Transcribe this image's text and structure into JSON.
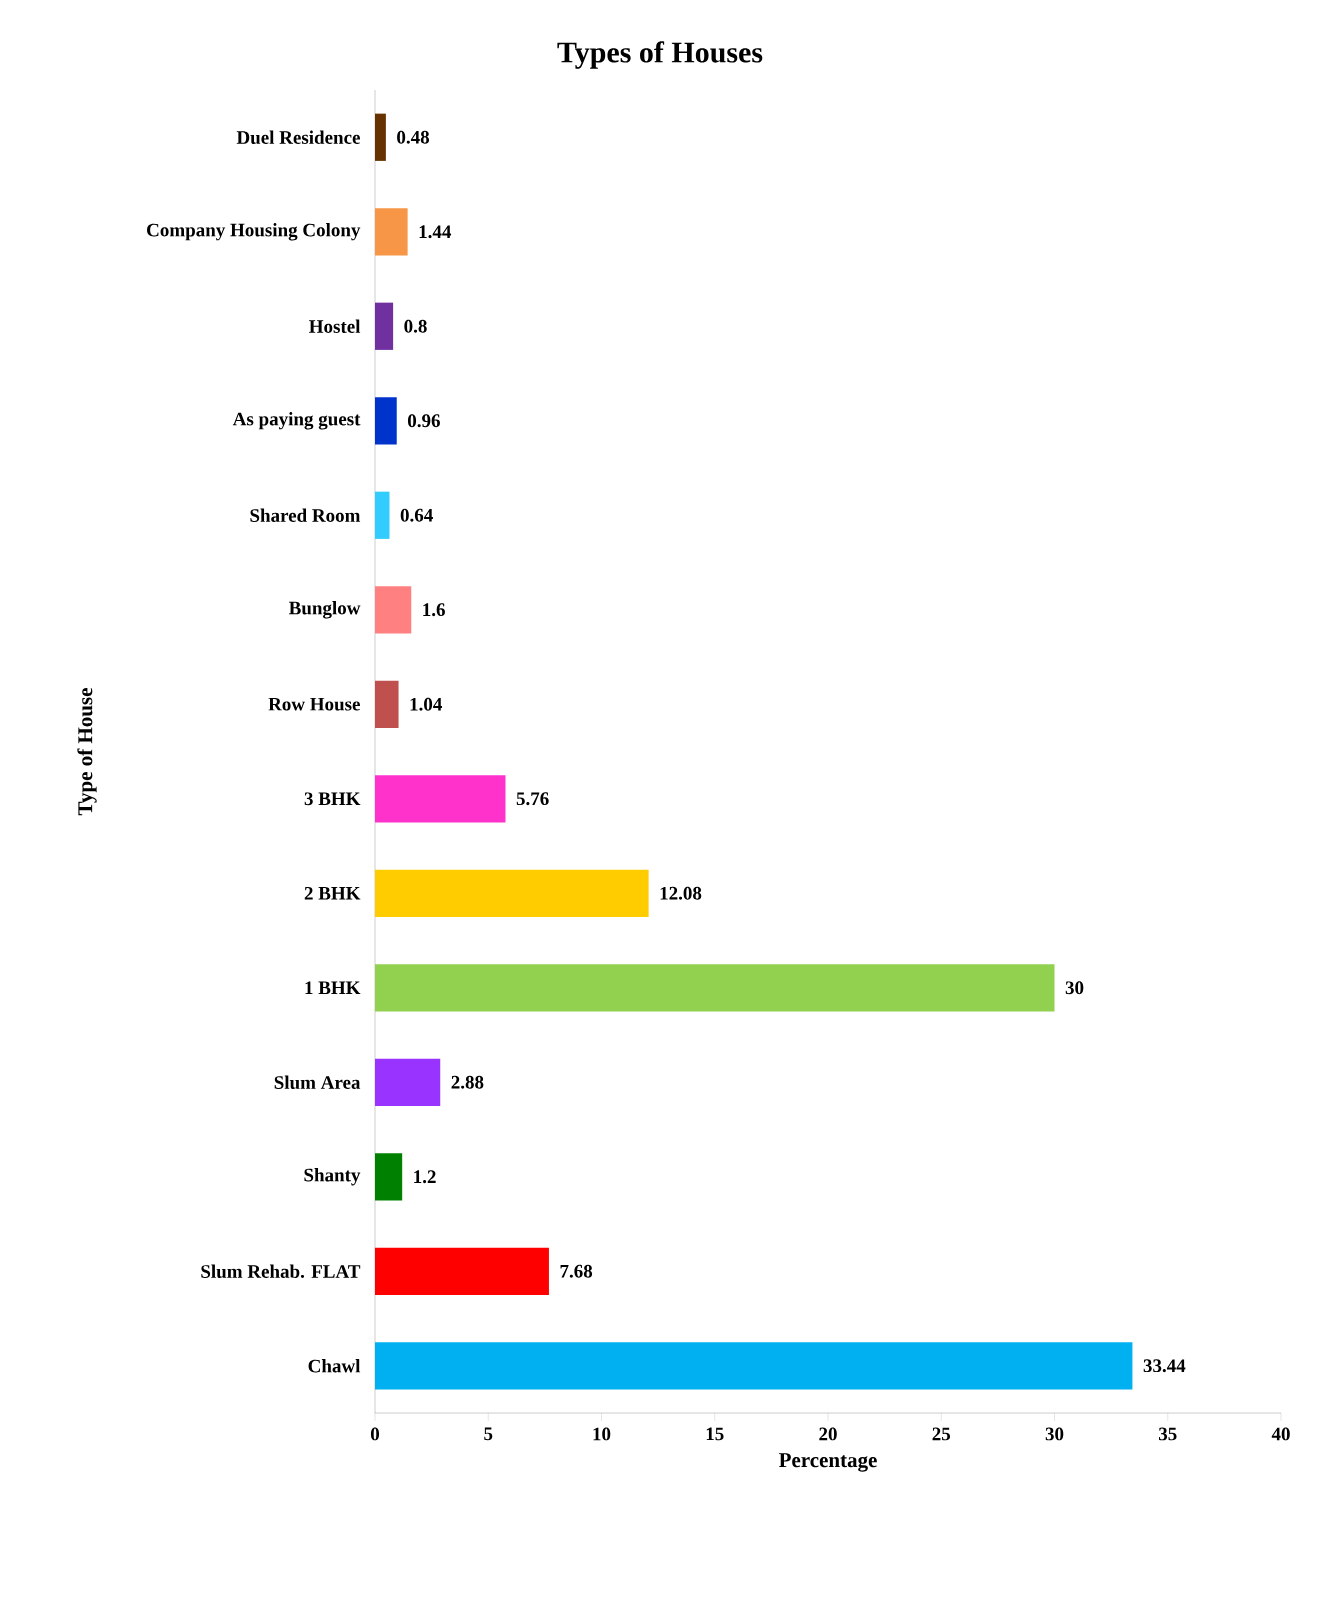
{
  "chart_data": {
    "type": "bar",
    "orientation": "horizontal",
    "title": "Types of Houses",
    "xlabel": "Percentage",
    "ylabel": "Type of House",
    "categories": [
      "Duel Residence",
      "Company Housing Colony",
      "Hostel",
      "As paying guest",
      "Shared Room",
      "Bunglow",
      "Row House",
      "3 BHK",
      "2 BHK",
      "1 BHK",
      "Slum Area",
      "Shanty",
      "Slum Rehab. FLAT",
      "Chawl"
    ],
    "values": [
      0.48,
      1.44,
      0.8,
      0.96,
      0.64,
      1.6,
      1.04,
      5.76,
      12.08,
      30,
      2.88,
      1.2,
      7.68,
      33.44
    ],
    "colors": [
      "#663300",
      "#f79646",
      "#7030a0",
      "#0033cc",
      "#33ccff",
      "#ff8080",
      "#c0504d",
      "#ff33cc",
      "#ffcc00",
      "#92d050",
      "#9933ff",
      "#008000",
      "#ff0000",
      "#00b0f0"
    ],
    "xlim": [
      0,
      40
    ],
    "xticks": [
      0,
      5,
      10,
      15,
      20,
      25,
      30,
      35,
      40
    ],
    "data_labels": true
  }
}
